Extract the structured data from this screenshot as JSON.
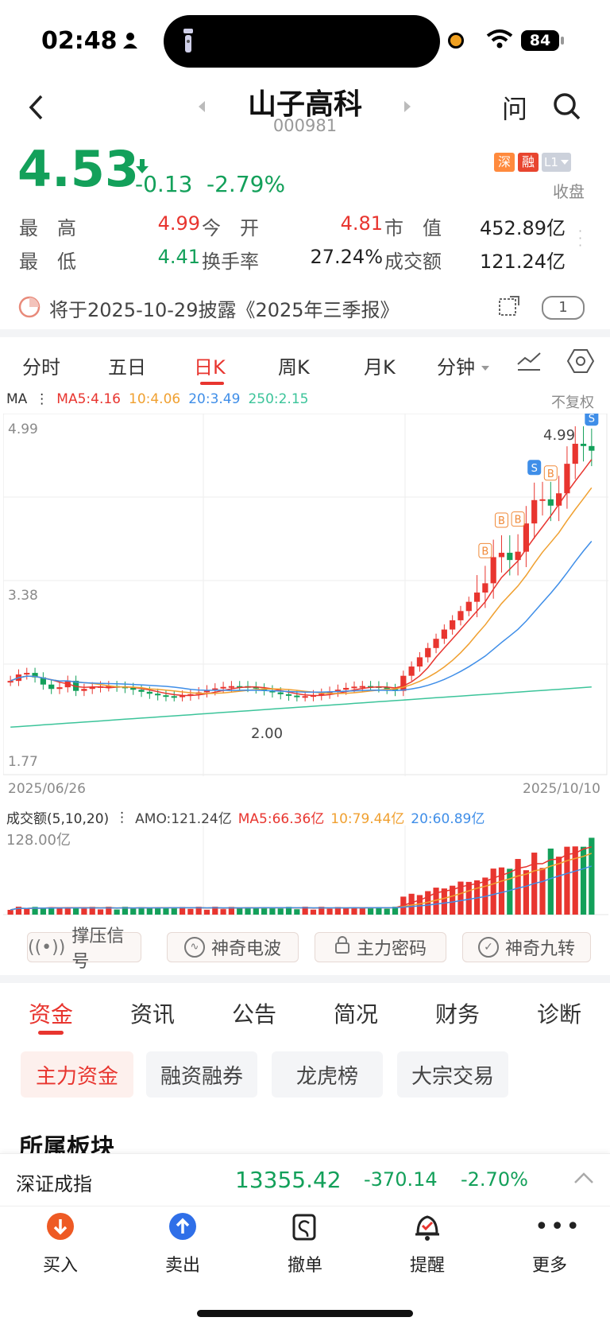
{
  "status": {
    "time": "02:48",
    "battery": "84"
  },
  "header": {
    "title": "山子高科",
    "code": "000981",
    "ask_label": "问"
  },
  "quote": {
    "price": "4.53",
    "change": "-0.13",
    "change_pct": "-2.79%",
    "badges": [
      "深",
      "融",
      "L1"
    ],
    "state": "收盘",
    "stats": [
      {
        "label": "最　高",
        "value": "4.99",
        "color": "red"
      },
      {
        "label": "今　开",
        "value": "4.81",
        "color": "red"
      },
      {
        "label": "市　值",
        "value": "452.89亿",
        "color": "dark"
      },
      {
        "label": "最　低",
        "value": "4.41",
        "color": "green"
      },
      {
        "label": "换手率",
        "value": "27.24%",
        "color": "dark"
      },
      {
        "label": "成交额",
        "value": "121.24亿",
        "color": "dark"
      }
    ]
  },
  "notice": {
    "text": "将于2025-10-29披露《2025年三季报》",
    "count": "1"
  },
  "chart_tabs": [
    "分时",
    "五日",
    "日K",
    "周K",
    "月K",
    "分钟"
  ],
  "active_chart_tab": "日K",
  "ma_legend": {
    "prefix": "MA",
    "ma5": "MA5:4.16",
    "ma10": "10:4.06",
    "ma20": "20:3.49",
    "ma250": "250:2.15",
    "adjust": "不复权"
  },
  "vol_legend": {
    "prefix": "成交额(5,10,20)",
    "amo": "AMO:121.24亿",
    "ma5": "MA5:66.36亿",
    "ma10": "10:79.44亿",
    "ma20": "20:60.89亿",
    "max": "128.00亿"
  },
  "chart_data": {
    "type": "candlestick",
    "y_ticks": [
      "4.99",
      "3.38",
      "1.77"
    ],
    "ylim": [
      1.77,
      4.99
    ],
    "x_start": "2025/06/26",
    "x_end": "2025/10/10",
    "high_marker": "4.99",
    "low_marker": "2.00",
    "volume_max": "128.00亿",
    "markers": [
      "S",
      "B",
      "B",
      "B",
      "S",
      "B"
    ],
    "colors": {
      "up": "#e8352f",
      "down": "#13a05a",
      "ma5": "#e8352f",
      "ma10": "#f0a030",
      "ma20": "#3f8ee8",
      "ma250": "#3cc49a"
    }
  },
  "tools": [
    "撑压信号",
    "神奇电波",
    "主力密码",
    "神奇九转"
  ],
  "info_tabs": [
    "资金",
    "资讯",
    "公告",
    "简况",
    "财务",
    "诊断"
  ],
  "active_info_tab": "资金",
  "sub_tabs": [
    "主力资金",
    "融资融券",
    "龙虎榜",
    "大宗交易"
  ],
  "section_title": "所属板块",
  "index_bar": {
    "name": "深证成指",
    "value": "13355.42",
    "change": "-370.14",
    "pct": "-2.70%"
  },
  "bottom_nav": [
    "买入",
    "卖出",
    "撤单",
    "提醒",
    "更多"
  ]
}
